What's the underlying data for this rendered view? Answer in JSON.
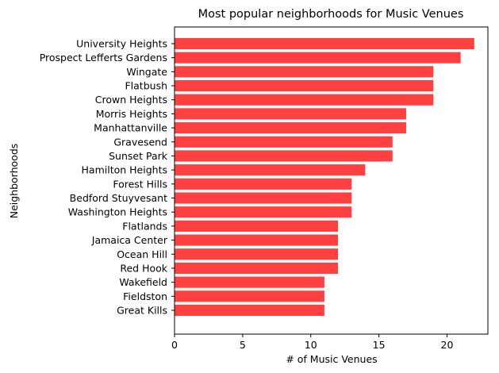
{
  "chart_data": {
    "type": "bar",
    "orientation": "horizontal",
    "title": "Most popular neighborhoods for Music Venues",
    "xlabel": "# of Music Venues",
    "ylabel": "Neighborhoods",
    "categories": [
      "University Heights",
      "Prospect Lefferts Gardens",
      "Wingate",
      "Flatbush",
      "Crown Heights",
      "Morris Heights",
      "Manhattanville",
      "Gravesend",
      "Sunset Park",
      "Hamilton Heights",
      "Forest Hills",
      "Bedford Stuyvesant",
      "Washington Heights",
      "Flatlands",
      "Jamaica Center",
      "Ocean Hill",
      "Red Hook",
      "Wakefield",
      "Fieldston",
      "Great Kills"
    ],
    "values": [
      22,
      21,
      19,
      19,
      19,
      17,
      17,
      16,
      16,
      14,
      13,
      13,
      13,
      12,
      12,
      12,
      12,
      11,
      11,
      11
    ],
    "xlim": [
      0,
      23
    ],
    "xticks": [
      0,
      5,
      10,
      15,
      20
    ],
    "bar_color": "#ff4040",
    "grid": false,
    "legend": "none"
  }
}
